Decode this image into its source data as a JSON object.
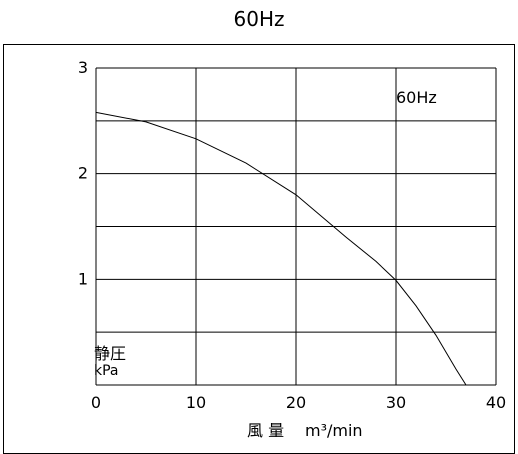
{
  "page": {
    "title": "60Hz"
  },
  "chart_data": {
    "type": "line",
    "title": "",
    "annotation": "60Hz",
    "xlabel": "風 量",
    "xlabel_unit": "m³/min",
    "ylabel": "静圧",
    "ylabel_unit": "kPa",
    "xlim": [
      0,
      40
    ],
    "ylim": [
      0,
      3
    ],
    "x_ticks": [
      0,
      10,
      20,
      30,
      40
    ],
    "y_ticks": [
      1,
      2,
      3
    ],
    "grid": true,
    "series": [
      {
        "x": [
          0,
          5,
          10,
          15,
          20,
          25,
          28,
          30,
          32,
          34,
          36,
          37
        ],
        "y": [
          2.58,
          2.49,
          2.33,
          2.1,
          1.8,
          1.4,
          1.17,
          0.99,
          0.75,
          0.47,
          0.15,
          0.0
        ]
      }
    ],
    "colors": {
      "line": "#000000",
      "grid": "#000000",
      "background": "#ffffff"
    }
  }
}
